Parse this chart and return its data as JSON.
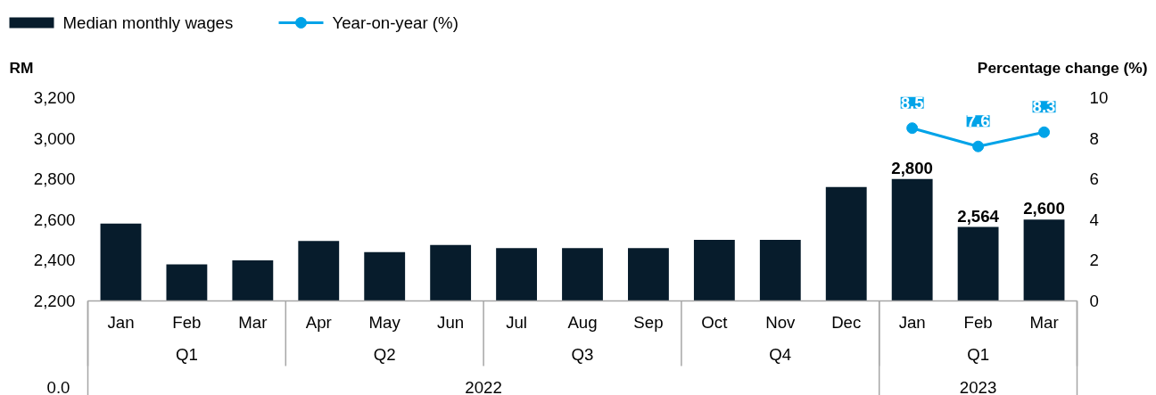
{
  "chart_data": {
    "type": "bar",
    "ylabel": "RM",
    "y2label": "Percentage change (%)",
    "grid": false,
    "legend": "top left",
    "categories": [
      "Jan",
      "Feb",
      "Mar",
      "Apr",
      "May",
      "Jun",
      "Jul",
      "Aug",
      "Sep",
      "Oct",
      "Nov",
      "Dec",
      "Jan",
      "Feb",
      "Mar"
    ],
    "ylim": [
      2200,
      3200
    ],
    "yticks": [
      {
        "value": 2200,
        "label": "2,200"
      },
      {
        "value": 2400,
        "label": "2,400"
      },
      {
        "value": 2600,
        "label": "2,600"
      },
      {
        "value": 2800,
        "label": "2,800"
      },
      {
        "value": 3000,
        "label": "3,000"
      },
      {
        "value": 3200,
        "label": "3,200"
      }
    ],
    "y2lim": [
      0,
      10
    ],
    "y2ticks": [
      0,
      2,
      4,
      6,
      8,
      10
    ],
    "annotations": [
      "Q1",
      "Q2",
      "Q3",
      "Q4",
      "Q1",
      "2022",
      "2023",
      "0.0"
    ],
    "series": [
      {
        "name": "Median monthly wages",
        "color": "#071c2c",
        "values": [
          2580,
          2380,
          2400,
          2495,
          2440,
          2475,
          2460,
          2460,
          2460,
          2500,
          2500,
          2760,
          2800,
          2564,
          2600
        ],
        "value_labels": [
          null,
          null,
          null,
          null,
          null,
          null,
          null,
          null,
          null,
          null,
          null,
          null,
          "2,800",
          "2,564",
          "2,600"
        ]
      },
      {
        "name": "Year-on-year (%)",
        "type": "line",
        "axis": "y2",
        "color": "#00a3e8",
        "marker": "circle",
        "values": [
          null,
          null,
          null,
          null,
          null,
          null,
          null,
          null,
          null,
          null,
          null,
          null,
          8.5,
          7.6,
          8.3
        ],
        "value_labels": [
          null,
          null,
          null,
          null,
          null,
          null,
          null,
          null,
          null,
          null,
          null,
          null,
          "8.5",
          "7.6",
          "8.3"
        ]
      }
    ]
  }
}
